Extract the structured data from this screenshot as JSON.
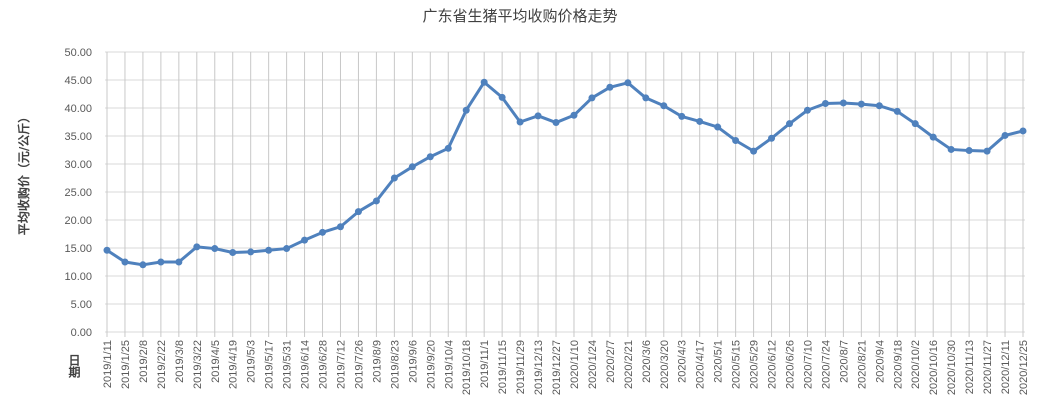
{
  "chart_data": {
    "type": "line",
    "title": "广东省生猪平均收购价格走势",
    "xlabel": "日期",
    "ylabel": "平均收购价（元/公斤）",
    "ylim": [
      0,
      50
    ],
    "yticks": [
      "0.00",
      "5.00",
      "10.00",
      "15.00",
      "20.00",
      "25.00",
      "30.00",
      "35.00",
      "40.00",
      "45.00",
      "50.00"
    ],
    "grid": true,
    "legend": "none",
    "line_color": "#4f81bd",
    "categories": [
      "2019/1/11",
      "2019/1/25",
      "2019/2/8",
      "2019/2/22",
      "2019/3/8",
      "2019/3/22",
      "2019/4/5",
      "2019/4/19",
      "2019/5/3",
      "2019/5/17",
      "2019/5/31",
      "2019/6/14",
      "2019/6/28",
      "2019/7/12",
      "2019/7/26",
      "2019/8/9",
      "2019/8/23",
      "2019/9/6",
      "2019/9/20",
      "2019/10/4",
      "2019/10/18",
      "2019/11/1",
      "2019/11/15",
      "2019/11/29",
      "2019/12/13",
      "2019/12/27",
      "2020/1/10",
      "2020/1/24",
      "2020/2/7",
      "2020/2/21",
      "2020/3/6",
      "2020/3/20",
      "2020/4/3",
      "2020/4/17",
      "2020/5/1",
      "2020/5/15",
      "2020/5/29",
      "2020/6/12",
      "2020/6/26",
      "2020/7/10",
      "2020/7/24",
      "2020/8/7",
      "2020/8/21",
      "2020/9/4",
      "2020/9/18",
      "2020/10/2",
      "2020/10/16",
      "2020/10/30",
      "2020/11/13",
      "2020/11/27",
      "2020/12/11",
      "2020/12/25"
    ],
    "values": [
      14.6,
      12.5,
      12.0,
      12.5,
      12.5,
      15.2,
      14.9,
      14.2,
      14.3,
      14.6,
      14.9,
      16.4,
      17.8,
      18.8,
      21.5,
      23.4,
      27.5,
      29.5,
      31.3,
      32.8,
      39.6,
      44.6,
      41.9,
      37.5,
      38.6,
      37.4,
      38.7,
      41.8,
      43.7,
      44.5,
      41.8,
      40.4,
      38.5,
      37.6,
      36.6,
      34.2,
      32.3,
      34.6,
      37.2,
      39.6,
      40.8,
      40.9,
      40.7,
      40.4,
      39.4,
      37.2,
      34.8,
      32.6,
      32.4,
      32.3,
      35.1,
      35.9
    ]
  }
}
